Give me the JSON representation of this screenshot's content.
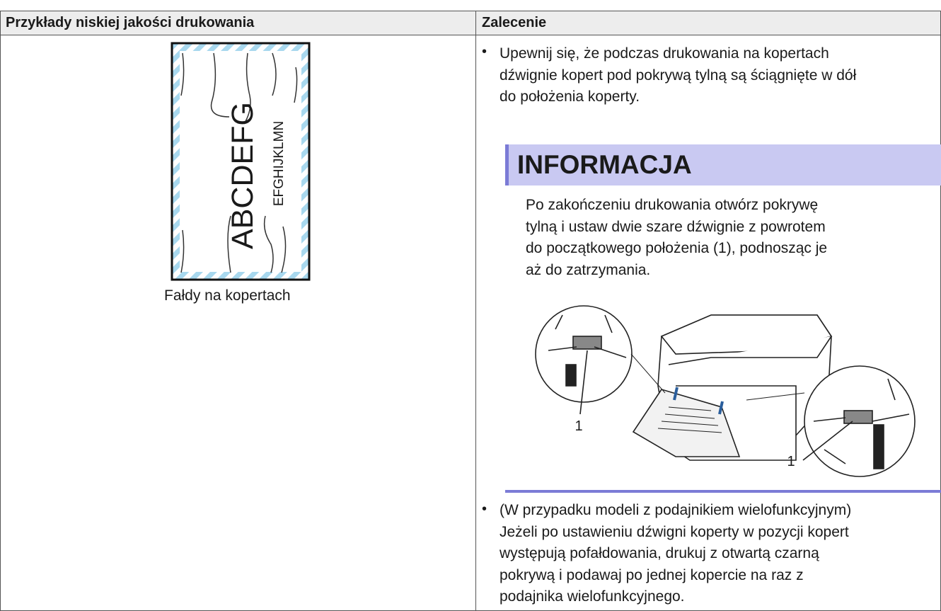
{
  "table": {
    "headers": [
      "Przykłady niskiej jakości drukowania",
      "Zalecenie"
    ],
    "example": {
      "envelope_text": [
        "ABCDEFG",
        "EFGHIJKLMN"
      ],
      "caption": "Fałdy na kopertach"
    },
    "recommendation": {
      "bullet_1": [
        "Upewnij się, że podczas drukowania na kopertach",
        "dźwignie kopert pod pokrywą tylną są ściągnięte w dół",
        "do położenia koperty."
      ],
      "note": {
        "title": "INFORMACJA",
        "lines": [
          "Po zakończeniu drukowania otwórz pokrywę",
          "tylną i ustaw dwie szare dźwignie z powrotem",
          "do początkowego położenia (1), podnosząc je",
          "aż do zatrzymania."
        ],
        "callouts": [
          "1",
          "1"
        ]
      },
      "bullet_2": [
        "(W przypadku modeli z podajnikiem wielofunkcyjnym)",
        "Jeżeli po ustawieniu dźwigni koperty w pozycji kopert",
        "występują pofałdowania, drukuj z otwartą czarną",
        "pokrywą i podawaj po jednej kopercie na raz z",
        "podajnika wielofunkcyjnego."
      ]
    }
  }
}
